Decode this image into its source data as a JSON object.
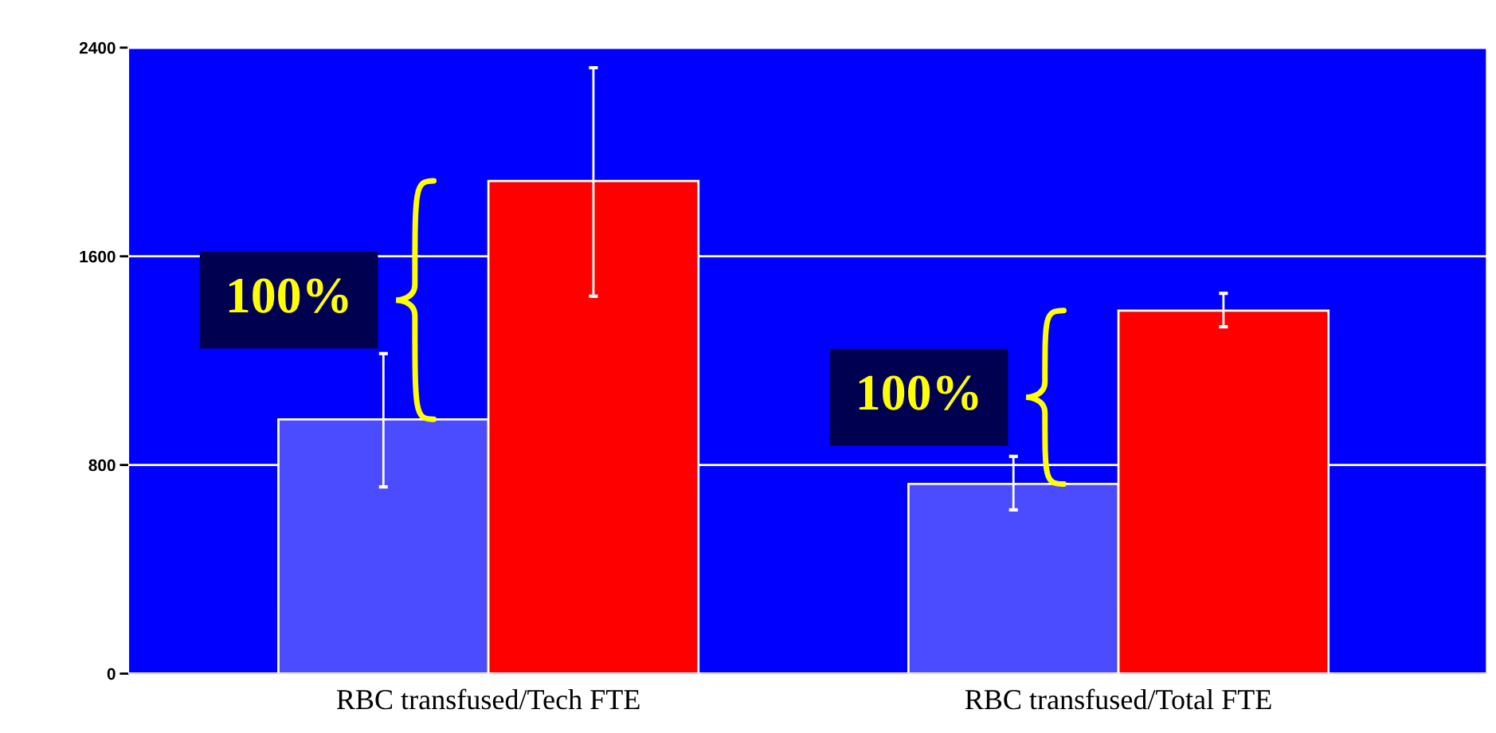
{
  "chart_data": {
    "type": "bar",
    "categories": [
      "RBC transfused/Tech FTE",
      "RBC transfused/Total FTE"
    ],
    "series": [
      {
        "color": "#4b4bff",
        "values": [
          975,
          727
        ],
        "errors": [
          [
            716,
            1227
          ],
          [
            628,
            833
          ]
        ]
      },
      {
        "color": "#ff0000",
        "values": [
          1889,
          1392
        ],
        "errors": [
          [
            1447,
            2323
          ],
          [
            1330,
            1458
          ]
        ]
      }
    ],
    "ylim": [
      0,
      2400
    ],
    "yticks": [
      0,
      800,
      1600,
      2400
    ],
    "grid": "y",
    "annotations": [
      "100%",
      "100%"
    ]
  }
}
